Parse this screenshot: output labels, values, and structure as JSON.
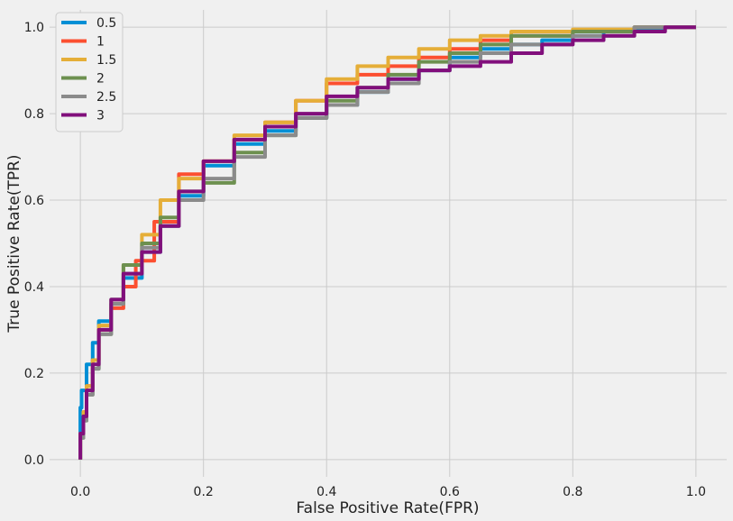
{
  "chart_data": {
    "type": "line",
    "title": "",
    "xlabel": "False Positive Rate(FPR)",
    "ylabel": "True Positive Rate(TPR)",
    "xlim": [
      -0.05,
      1.05
    ],
    "ylim": [
      -0.04,
      1.04
    ],
    "x_ticks": [
      0.0,
      0.2,
      0.4,
      0.6,
      0.8,
      1.0
    ],
    "x_tick_labels": [
      "0.0",
      "0.2",
      "0.4",
      "0.6",
      "0.8",
      "1.0"
    ],
    "y_ticks": [
      0.0,
      0.2,
      0.4,
      0.6,
      0.8,
      1.0
    ],
    "y_tick_labels": [
      "0.0",
      "0.2",
      "0.4",
      "0.6",
      "0.8",
      "1.0"
    ],
    "grid": true,
    "legend_position": "top-left",
    "series": [
      {
        "name": "0.5",
        "color": "#008fd5",
        "x": [
          0,
          0.002,
          0.01,
          0.02,
          0.03,
          0.05,
          0.07,
          0.1,
          0.13,
          0.16,
          0.2,
          0.25,
          0.3,
          0.35,
          0.4,
          0.45,
          0.5,
          0.55,
          0.6,
          0.65,
          0.7,
          0.75,
          0.8,
          0.85,
          0.9,
          0.95
        ],
        "y": [
          0,
          0.12,
          0.16,
          0.22,
          0.27,
          0.32,
          0.37,
          0.42,
          0.48,
          0.54,
          0.61,
          0.68,
          0.73,
          0.76,
          0.79,
          0.82,
          0.85,
          0.88,
          0.9,
          0.93,
          0.95,
          0.96,
          0.97,
          0.98,
          0.99,
          0.995
        ]
      },
      {
        "name": "1",
        "color": "#fc4f30",
        "x": [
          0,
          0.005,
          0.01,
          0.02,
          0.03,
          0.05,
          0.07,
          0.09,
          0.12,
          0.16,
          0.2,
          0.25,
          0.3,
          0.35,
          0.4,
          0.45,
          0.5,
          0.55,
          0.6,
          0.65,
          0.7,
          0.8,
          0.9,
          1.0
        ],
        "y": [
          0,
          0.06,
          0.11,
          0.17,
          0.23,
          0.3,
          0.35,
          0.4,
          0.46,
          0.55,
          0.66,
          0.69,
          0.74,
          0.78,
          0.83,
          0.87,
          0.89,
          0.91,
          0.93,
          0.95,
          0.97,
          0.98,
          0.99,
          1.0
        ]
      },
      {
        "name": "1.5",
        "color": "#e5ae38",
        "x": [
          0,
          0.005,
          0.01,
          0.02,
          0.03,
          0.05,
          0.07,
          0.1,
          0.13,
          0.16,
          0.2,
          0.25,
          0.3,
          0.35,
          0.4,
          0.45,
          0.5,
          0.55,
          0.6,
          0.65,
          0.7,
          0.8,
          0.9,
          1.0
        ],
        "y": [
          0,
          0.06,
          0.11,
          0.17,
          0.23,
          0.31,
          0.37,
          0.45,
          0.52,
          0.6,
          0.65,
          0.69,
          0.75,
          0.78,
          0.83,
          0.88,
          0.91,
          0.93,
          0.95,
          0.97,
          0.98,
          0.99,
          0.995,
          1.0
        ]
      },
      {
        "name": "2",
        "color": "#6d904f",
        "x": [
          0,
          0.005,
          0.01,
          0.02,
          0.03,
          0.05,
          0.07,
          0.1,
          0.13,
          0.16,
          0.2,
          0.25,
          0.3,
          0.35,
          0.4,
          0.45,
          0.5,
          0.55,
          0.6,
          0.65,
          0.7,
          0.8,
          0.9,
          1.0
        ],
        "y": [
          0,
          0.05,
          0.09,
          0.15,
          0.21,
          0.29,
          0.36,
          0.45,
          0.5,
          0.56,
          0.62,
          0.64,
          0.71,
          0.75,
          0.79,
          0.83,
          0.86,
          0.89,
          0.92,
          0.94,
          0.96,
          0.98,
          0.99,
          1.0
        ]
      },
      {
        "name": "2.5",
        "color": "#8b8b8b",
        "x": [
          0,
          0.005,
          0.01,
          0.02,
          0.03,
          0.05,
          0.07,
          0.1,
          0.13,
          0.16,
          0.2,
          0.25,
          0.3,
          0.35,
          0.4,
          0.45,
          0.5,
          0.55,
          0.6,
          0.65,
          0.7,
          0.8,
          0.9,
          1.0
        ],
        "y": [
          0,
          0.05,
          0.09,
          0.15,
          0.21,
          0.29,
          0.36,
          0.43,
          0.49,
          0.54,
          0.6,
          0.65,
          0.7,
          0.75,
          0.79,
          0.82,
          0.85,
          0.87,
          0.9,
          0.92,
          0.94,
          0.96,
          0.98,
          1.0
        ]
      },
      {
        "name": "3",
        "color": "#810f7c",
        "x": [
          0,
          0.005,
          0.01,
          0.02,
          0.03,
          0.05,
          0.07,
          0.1,
          0.13,
          0.16,
          0.2,
          0.25,
          0.3,
          0.35,
          0.4,
          0.45,
          0.5,
          0.55,
          0.6,
          0.65,
          0.7,
          0.75,
          0.8,
          0.85,
          0.9,
          0.95,
          1.0
        ],
        "y": [
          0,
          0.06,
          0.1,
          0.16,
          0.22,
          0.3,
          0.37,
          0.43,
          0.48,
          0.54,
          0.62,
          0.69,
          0.74,
          0.77,
          0.8,
          0.84,
          0.86,
          0.88,
          0.9,
          0.91,
          0.92,
          0.94,
          0.96,
          0.97,
          0.98,
          0.99,
          1.0
        ]
      }
    ]
  }
}
